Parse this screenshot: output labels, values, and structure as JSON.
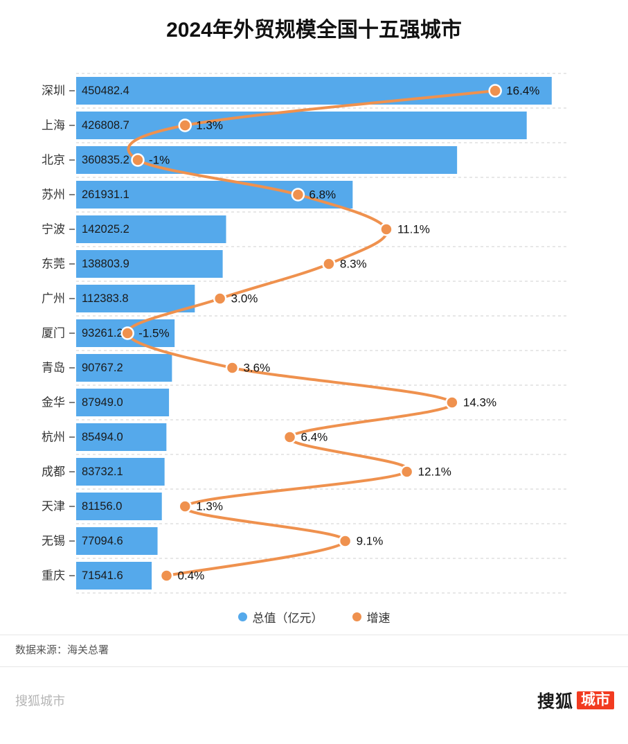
{
  "title": "2024年外贸规模全国十五强城市",
  "legend": {
    "bar": "总值（亿元）",
    "line": "增速"
  },
  "source": "数据来源：海关总署",
  "footer": {
    "watermark": "搜狐城市",
    "logo_text": "搜狐",
    "logo_badge": "城市"
  },
  "colors": {
    "bar": "#55a9eb",
    "line": "#ef914e",
    "grid": "#cfcfcf",
    "tick": "#555555",
    "label": "#333333",
    "value_text": "#1a1a1a",
    "logo_red": "#f23b20"
  },
  "chart_data": {
    "type": "bar",
    "orientation": "horizontal",
    "title": "2024年外贸规模全国十五强城市",
    "categories": [
      "深圳",
      "上海",
      "北京",
      "苏州",
      "宁波",
      "东莞",
      "广州",
      "厦门",
      "青岛",
      "金华",
      "杭州",
      "成都",
      "天津",
      "无锡",
      "重庆"
    ],
    "series": [
      {
        "name": "总值（亿元）",
        "type": "bar",
        "values": [
          450482.4,
          426808.7,
          360835.2,
          261931.1,
          142025.2,
          138803.9,
          112383.8,
          93261.2,
          90767.2,
          87949.0,
          85494.0,
          83732.1,
          81156.0,
          77094.6,
          71541.6
        ]
      },
      {
        "name": "增速",
        "type": "line",
        "unit": "%",
        "values": [
          16.4,
          1.3,
          -1,
          6.8,
          11.1,
          8.3,
          3.0,
          -1.5,
          3.6,
          14.3,
          6.4,
          12.1,
          1.3,
          9.1,
          0.4
        ]
      }
    ],
    "value_labels": [
      "450482.4",
      "426808.7",
      "360835.2",
      "261931.1",
      "142025.2",
      "138803.9",
      "112383.8",
      "93261.2",
      "90767.2",
      "87949.0",
      "85494.0",
      "83732.1",
      "81156.0",
      "77094.6",
      "71541.6"
    ],
    "growth_labels": [
      "16.4%",
      "1.3%",
      "-1%",
      "6.8%",
      "11.1%",
      "8.3%",
      "3.0%",
      "-1.5%",
      "3.6%",
      "14.3%",
      "6.4%",
      "12.1%",
      "1.3%",
      "9.1%",
      "0.4%"
    ],
    "bar_axis_max": 467000,
    "growth_axis_range": [
      -4,
      20
    ],
    "grid": "dashed-horizontal",
    "legend_position": "bottom"
  }
}
